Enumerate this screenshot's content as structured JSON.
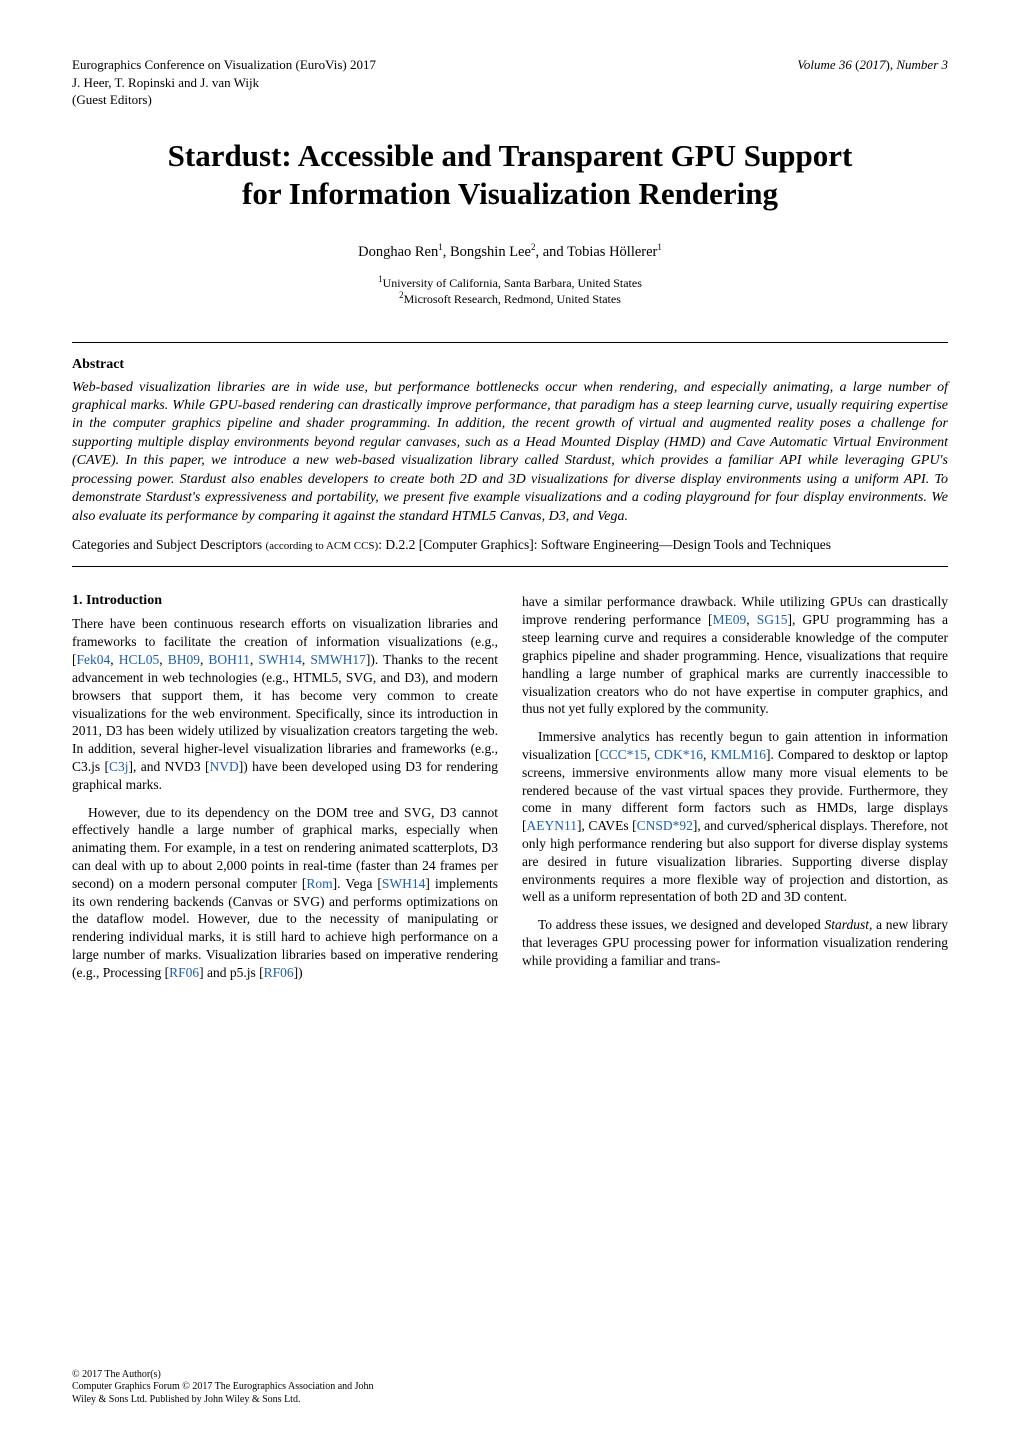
{
  "header": {
    "conference_line1": "Eurographics Conference on Visualization (EuroVis) 2017",
    "editors_line": "J. Heer, T. Ropinski and J. van Wijk",
    "editors_role": "(Guest Editors)",
    "volume_label": "Volume 36",
    "year": "2017",
    "issue_label": "Number 3"
  },
  "title": {
    "line1": "Stardust: Accessible and Transparent GPU Support",
    "line2": "for Information Visualization Rendering"
  },
  "authors": {
    "a1_name": "Donghao Ren",
    "a1_aff": "1",
    "a2_name": "Bongshin Lee",
    "a2_aff": "2",
    "a3_name": "Tobias Höllerer",
    "a3_aff": "1"
  },
  "affiliations": {
    "aff1_sup": "1",
    "aff1": "University of California, Santa Barbara, United States",
    "aff2_sup": "2",
    "aff2": "Microsoft Research, Redmond, United States"
  },
  "abstract": {
    "heading": "Abstract",
    "body": "Web-based visualization libraries are in wide use, but performance bottlenecks occur when rendering, and especially animating, a large number of graphical marks. While GPU-based rendering can drastically improve performance, that paradigm has a steep learning curve, usually requiring expertise in the computer graphics pipeline and shader programming. In addition, the recent growth of virtual and augmented reality poses a challenge for supporting multiple display environments beyond regular canvases, such as a Head Mounted Display (HMD) and Cave Automatic Virtual Environment (CAVE). In this paper, we introduce a new web-based visualization library called Stardust, which provides a familiar API while leveraging GPU's processing power. Stardust also enables developers to create both 2D and 3D visualizations for diverse display environments using a uniform API. To demonstrate Stardust's expressiveness and portability, we present five example visualizations and a coding playground for four display environments. We also evaluate its performance by comparing it against the standard HTML5 Canvas, D3, and Vega.",
    "ccs_prefix": "Categories and Subject Descriptors ",
    "ccs_small": "(according to ACM CCS)",
    "ccs_rest": ":  D.2.2 [Computer Graphics]: Software Engineering—Design Tools and Techniques"
  },
  "section1": {
    "heading": "1. Introduction"
  },
  "left": {
    "p1_a": "There have been continuous research efforts on visualization libraries and frameworks to facilitate the creation of information visualizations (e.g., [",
    "p1_c1": "Fek04",
    "p1_s1": ", ",
    "p1_c2": "HCL05",
    "p1_s2": ", ",
    "p1_c3": "BH09",
    "p1_s3": ", ",
    "p1_c4": "BOH11",
    "p1_s4": ", ",
    "p1_c5": "SWH14",
    "p1_s5": ", ",
    "p1_c6": "SMWH17",
    "p1_b": "]). Thanks to the recent advancement in web technologies (e.g., HTML5, SVG, and D3), and modern browsers that support them, it has become very common to create visualizations for the web environment. Specifically, since its introduction in 2011, D3 has been widely utilized by visualization creators targeting the web. In addition, several higher-level visualization libraries and frameworks (e.g., C3.js [",
    "p1_c7": "C3j",
    "p1_c": "], and NVD3 [",
    "p1_c8": "NVD",
    "p1_d": "]) have been developed using D3 for rendering graphical marks.",
    "p2_a": "However, due to its dependency on the DOM tree and SVG, D3 cannot effectively handle a large number of graphical marks, especially when animating them. For example, in a test on rendering animated scatterplots, D3 can deal with up to about 2,000 points in real-time (faster than 24 frames per second) on a modern personal computer [",
    "p2_c1": "Rom",
    "p2_b": "]. Vega [",
    "p2_c2": "SWH14",
    "p2_c": "] implements its own rendering backends (Canvas or SVG) and performs optimizations on the dataflow model. However, due to the necessity of manipulating or rendering individual marks, it is still hard to achieve high performance on a large number of marks. Visualization libraries based on imperative rendering (e.g., Processing [",
    "p2_c3": "RF06",
    "p2_d": "] and p5.js [",
    "p2_c4": "RF06",
    "p2_e": "])"
  },
  "right": {
    "p1_a": "have a similar performance drawback. While utilizing GPUs can drastically improve rendering performance [",
    "p1_c1": "ME09",
    "p1_s1": ", ",
    "p1_c2": "SG15",
    "p1_b": "], GPU programming has a steep learning curve and requires a considerable knowledge of the computer graphics pipeline and shader programming. Hence, visualizations that require handling a large number of graphical marks are currently inaccessible to visualization creators who do not have expertise in computer graphics, and thus not yet fully explored by the community.",
    "p2_a": "Immersive analytics has recently begun to gain attention in information visualization [",
    "p2_c1": "CCC*15",
    "p2_s1": ", ",
    "p2_c2": "CDK*16",
    "p2_s2": ", ",
    "p2_c3": "KMLM16",
    "p2_b": "]. Compared to desktop or laptop screens, immersive environments allow many more visual elements to be rendered because of the vast virtual spaces they provide. Furthermore, they come in many different form factors such as HMDs, large displays [",
    "p2_c4": "AEYN11",
    "p2_c": "], CAVEs [",
    "p2_c5": "CNSD*92",
    "p2_d": "], and curved/spherical displays. Therefore, not only high performance rendering but also support for diverse display systems are desired in future visualization libraries. Supporting diverse display environments requires a more flexible way of projection and distortion, as well as a uniform representation of both 2D and 3D content.",
    "p3_a": "To address these issues, we designed and developed ",
    "p3_em": "Stardust",
    "p3_b": ", a new library that leverages GPU processing power for information visualization rendering while providing a familiar and trans-"
  },
  "footer": {
    "l1": "© 2017 The Author(s)",
    "l2": "Computer Graphics Forum © 2017 The Eurographics Association and John",
    "l3": "Wiley & Sons Ltd. Published by John Wiley & Sons Ltd."
  }
}
